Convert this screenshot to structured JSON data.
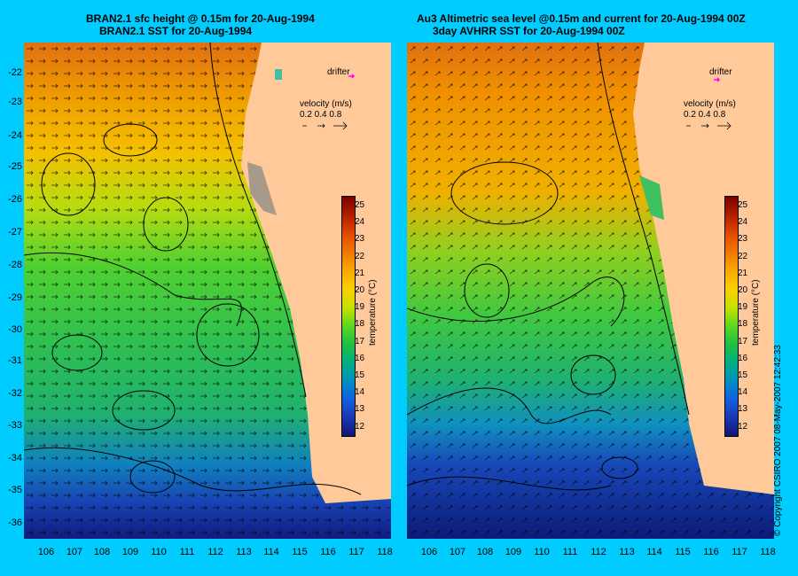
{
  "left_panel": {
    "title_line1": "BRAN2.1 sfc height @ 0.15m for 20-Aug-1994",
    "title_line2": "BRAN2.1 SST for 20-Aug-1994"
  },
  "right_panel": {
    "title_line1": "Au3 Altimetric sea level  @0.15m and current for 20-Aug-1994 00Z",
    "title_line2": "3day AVHRR SST for 20-Aug-1994 00Z"
  },
  "legend": {
    "drifter_label": "drifter",
    "velocity_label": "velocity (m/s)",
    "velocity_scale": "0.2 0.4 0.8",
    "colorbar_title": "temperature (°C)",
    "colorbar_ticks": [
      "25",
      "24",
      "23",
      "22",
      "21",
      "20",
      "19",
      "18",
      "17",
      "16",
      "15",
      "14",
      "13",
      "12"
    ],
    "colorbar_colors": [
      "#7a0000",
      "#b01e00",
      "#e04a00",
      "#f07800",
      "#f8a800",
      "#f8d000",
      "#c8e000",
      "#60d820",
      "#20c040",
      "#00b080",
      "#0090c0",
      "#1060e0",
      "#1838b8",
      "#101870"
    ]
  },
  "axes": {
    "lat_labels": [
      "-22",
      "-23",
      "-24",
      "-25",
      "-26",
      "-27",
      "-28",
      "-29",
      "-30",
      "-31",
      "-32",
      "-33",
      "-34",
      "-35",
      "-36"
    ],
    "lon_labels": [
      "106",
      "107",
      "108",
      "109",
      "110",
      "111",
      "112",
      "113",
      "114",
      "115",
      "116",
      "117",
      "118"
    ]
  },
  "copyright": "© Copyright CSIRO 2007   08-May-2007 12:42:33",
  "colors": {
    "background": "#00ccff",
    "land": "#ffc99a"
  }
}
